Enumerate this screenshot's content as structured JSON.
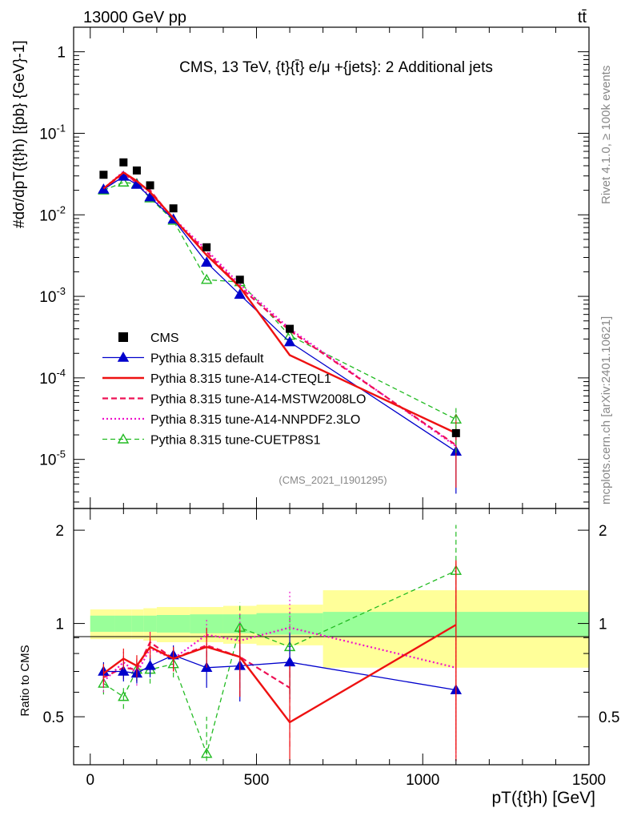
{
  "header": {
    "beam": "13000 GeV pp",
    "process": "tt̄",
    "plot_title": "CMS, 13 TeV, {t}{t̄} e/μ +{jets}: 2 Additional jets",
    "analysis_id": "(CMS_2021_I1901295)",
    "side_right_top": "Rivet 4.1.0, ≥ 100k events",
    "side_right_bottom": "mcplots.cern.ch [arXiv:2401.10621]"
  },
  "axes": {
    "ylabel_top": "#dσ/dpT({t}h) [{pb} {GeV}-1]",
    "ylabel_ratio": "Ratio to CMS",
    "xlabel": "pT({t}h) [GeV]"
  },
  "colors": {
    "data": "#000000",
    "default": "#0000cc",
    "cteql1": "#ee1111",
    "mstw": "#ee1155",
    "nnpdf": "#ee11cc",
    "cuetp8s1": "#22bb22",
    "band_inner": "#99ff99",
    "band_outer": "#ffff99"
  },
  "chart_data": {
    "type": "line",
    "log_y": true,
    "xlim": [
      -50,
      1500
    ],
    "ylim": [
      2.5e-06,
      2.0
    ],
    "ratio_ylim": [
      0.35,
      2.35
    ],
    "x_ticks": [
      0,
      500,
      1000,
      1500
    ],
    "y_ticks_top": [
      "1",
      "10^-1",
      "10^-2",
      "10^-3",
      "10^-4",
      "10^-5"
    ],
    "y_ticks_ratio": [
      "0.5",
      "1",
      "2"
    ],
    "bin_edges": [
      0,
      75,
      125,
      160,
      200,
      300,
      400,
      500,
      700,
      1500
    ],
    "x": [
      40,
      100,
      140,
      180,
      250,
      350,
      450,
      600,
      1100
    ],
    "legend": [
      {
        "key": "data",
        "label": "CMS",
        "style": "square"
      },
      {
        "key": "default",
        "label": "Pythia 8.315 default",
        "style": "triangle-solid"
      },
      {
        "key": "cteql1",
        "label": "Pythia 8.315 tune-A14-CTEQL1",
        "style": "solid"
      },
      {
        "key": "mstw",
        "label": "Pythia 8.315 tune-A14-MSTW2008LO",
        "style": "dashed"
      },
      {
        "key": "nnpdf",
        "label": "Pythia 8.315 tune-A14-NNPDF2.3LO",
        "style": "dotted"
      },
      {
        "key": "cuetp8s1",
        "label": "Pythia 8.315 tune-CUETP8S1",
        "style": "triangle-open-dashed"
      }
    ],
    "data": {
      "name": "CMS",
      "values": [
        0.031,
        0.044,
        0.035,
        0.023,
        0.012,
        0.004,
        0.0016,
        0.0004,
        2.1e-05
      ],
      "band_inner": [
        0.06,
        0.06,
        0.06,
        0.06,
        0.065,
        0.07,
        0.07,
        0.08,
        0.09
      ],
      "band_outer": [
        0.11,
        0.11,
        0.11,
        0.12,
        0.13,
        0.13,
        0.14,
        0.15,
        0.28
      ]
    },
    "series": [
      {
        "key": "default",
        "name": "Pythia 8.315 default",
        "values": [
          0.0205,
          0.0295,
          0.0235,
          0.0165,
          0.0088,
          0.0026,
          0.00105,
          0.000275,
          1.25e-05
        ],
        "ratio": [
          0.7,
          0.7,
          0.69,
          0.73,
          0.79,
          0.72,
          0.73,
          0.75,
          0.61
        ],
        "ratio_err": [
          0.05,
          0.05,
          0.05,
          0.06,
          0.06,
          0.1,
          0.17,
          0.18,
          0.0
        ],
        "ratio_show": [
          true,
          true,
          true,
          true,
          true,
          true,
          true,
          true,
          true
        ]
      },
      {
        "key": "cteql1",
        "name": "Pythia 8.315 tune-A14-CTEQL1",
        "values": [
          0.021,
          0.033,
          0.026,
          0.019,
          0.0091,
          0.0032,
          0.0013,
          0.00019,
          2.1e-05
        ],
        "ratio": [
          0.69,
          0.77,
          0.73,
          0.84,
          0.77,
          0.84,
          0.78,
          0.48,
          0.99
        ],
        "ratio_err": [
          0.05,
          0.06,
          0.06,
          0.07,
          0.07,
          0.12,
          0.2,
          0.25,
          0.6
        ],
        "ratio_show": [
          true,
          true,
          true,
          true,
          true,
          true,
          true,
          true,
          true
        ]
      },
      {
        "key": "mstw",
        "name": "Pythia 8.315 tune-A14-MSTW2008LO",
        "values": [
          0.021,
          0.032,
          0.025,
          0.02,
          0.0088,
          0.0035,
          0.0013,
          0.00038,
          1.5e-05
        ],
        "ratio": [
          0.67,
          0.72,
          0.71,
          0.87,
          0.77,
          0.85,
          0.78,
          0.62,
          0.0
        ],
        "ratio_err": [
          0.05,
          0.06,
          0.06,
          0.07,
          0.07,
          0.12,
          0.2,
          0.22,
          0.0
        ],
        "ratio_show": [
          true,
          true,
          true,
          true,
          true,
          true,
          true,
          true,
          false
        ]
      },
      {
        "key": "nnpdf",
        "name": "Pythia 8.315 tune-A14-NNPDF2.3LO",
        "values": [
          0.021,
          0.034,
          0.024,
          0.017,
          0.0091,
          0.0037,
          0.0014,
          0.0004,
          1.45e-05
        ],
        "ratio": [
          0.65,
          0.75,
          0.69,
          0.83,
          0.77,
          0.92,
          0.88,
          0.97,
          0.72
        ],
        "ratio_err": [
          0.05,
          0.06,
          0.06,
          0.07,
          0.07,
          0.12,
          0.2,
          0.3,
          0.6
        ],
        "ratio_show": [
          true,
          true,
          true,
          true,
          true,
          true,
          true,
          true,
          true
        ]
      },
      {
        "key": "cuetp8s1",
        "name": "Pythia 8.315 tune-CUETP8S1",
        "values": [
          0.02,
          0.025,
          0.024,
          0.016,
          0.0085,
          0.0016,
          0.0015,
          0.00033,
          3.1e-05
        ],
        "ratio": [
          0.64,
          0.58,
          0.71,
          0.71,
          0.74,
          0.38,
          0.97,
          0.84,
          1.48
        ],
        "ratio_err": [
          0.05,
          0.05,
          0.06,
          0.07,
          0.07,
          0.12,
          0.2,
          0.25,
          0.6
        ],
        "ratio_show": [
          true,
          true,
          true,
          true,
          true,
          true,
          true,
          true,
          true
        ]
      }
    ]
  }
}
